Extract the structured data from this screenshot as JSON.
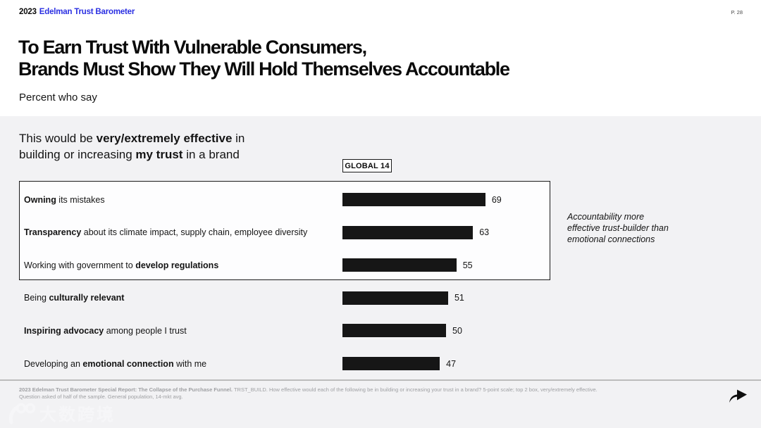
{
  "header": {
    "year": "2023",
    "brand": "Edelman Trust Barometer",
    "page": "P. 28"
  },
  "title": {
    "line1": "To Earn Trust With Vulnerable Consumers,",
    "line2": "Brands Must Show They Will Hold Themselves Accountable"
  },
  "subtitle": "Percent who say",
  "chart_data": {
    "type": "bar",
    "orientation": "horizontal",
    "unit": "percent",
    "xlim": [
      0,
      100
    ],
    "column_header": "GLOBAL 14",
    "intro_lines": [
      [
        {
          "t": "This would be ",
          "b": false
        },
        {
          "t": "very/extremely effective",
          "b": true
        },
        {
          "t": " in",
          "b": false
        }
      ],
      [
        {
          "t": "building or increasing ",
          "b": false
        },
        {
          "t": "my trust",
          "b": true
        },
        {
          "t": " in a brand",
          "b": false
        }
      ]
    ],
    "categories": [
      "Owning its mistakes",
      "Transparency about its climate impact, supply chain, employee diversity",
      "Working with government to develop regulations",
      "Being culturally relevant",
      "Inspiring advocacy among people I trust",
      "Developing an emotional connection with me"
    ],
    "values": [
      69,
      63,
      55,
      51,
      50,
      47
    ],
    "rows": [
      {
        "segments": [
          {
            "t": "Owning",
            "b": true
          },
          {
            "t": " its mistakes",
            "b": false
          }
        ],
        "value": 69,
        "highlighted": true
      },
      {
        "segments": [
          {
            "t": "Transparency",
            "b": true
          },
          {
            "t": " about its climate impact, supply chain, employee diversity",
            "b": false
          }
        ],
        "value": 63,
        "highlighted": true
      },
      {
        "segments": [
          {
            "t": "Working with government to ",
            "b": false
          },
          {
            "t": "develop regulations",
            "b": true
          }
        ],
        "value": 55,
        "highlighted": true
      },
      {
        "segments": [
          {
            "t": "Being ",
            "b": false
          },
          {
            "t": "culturally relevant",
            "b": true
          }
        ],
        "value": 51,
        "highlighted": false
      },
      {
        "segments": [
          {
            "t": "Inspiring advocacy",
            "b": true
          },
          {
            "t": " among people I trust",
            "b": false
          }
        ],
        "value": 50,
        "highlighted": false
      },
      {
        "segments": [
          {
            "t": "Developing an ",
            "b": false
          },
          {
            "t": "emotional connection",
            "b": true
          },
          {
            "t": " with me",
            "b": false
          }
        ],
        "value": 47,
        "highlighted": false
      }
    ],
    "annotation": "Accountability more\neffective trust-builder than\nemotional connections"
  },
  "footer": {
    "source_bold": "2023 Edelman Trust Barometer Special Report: The Collapse of the Purchase Funnel.",
    "source_rest": " TRST_BUILD. How effective would each of the following be in building or increasing your trust in a brand? 5-point scale; top 2 box, very/extremely effective.",
    "line2": "Question asked of half of the sample. General population, 14-mkt avg."
  },
  "watermark": {
    "logo": "100",
    "text": "大数跨境"
  },
  "colors": {
    "brand_blue": "#2a2fe2",
    "bar": "#161616",
    "section_bg": "#f2f2f4",
    "box_bg": "#fdfdfe",
    "footer_text": "#9fa0a3",
    "divider": "#bcbcbc"
  }
}
